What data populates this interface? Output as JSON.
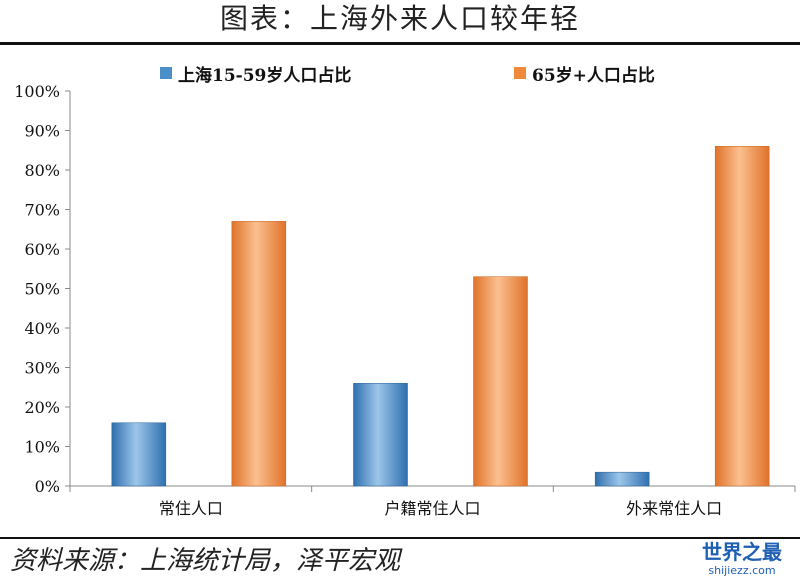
{
  "header": {
    "title": "图表：上海外来人口较年轻"
  },
  "footer": {
    "source": "资料来源：上海统计局，泽平宏观"
  },
  "watermark": {
    "main": "世界之最",
    "sub": "shijiezz.com"
  },
  "colors": {
    "blue": "#4a8fc9",
    "orange": "#f08a3a",
    "axis": "#888888"
  },
  "chart_data": {
    "type": "bar",
    "categories": [
      "常住人口",
      "户籍常住人口",
      "外来常住人口"
    ],
    "series": [
      {
        "name": "上海15-59岁人口占比",
        "values": [
          16,
          26,
          3.5
        ]
      },
      {
        "name": "65岁+人口占比",
        "values": [
          67,
          53,
          86
        ]
      }
    ],
    "ylim": [
      0,
      100
    ],
    "yticks": [
      "0%",
      "10%",
      "20%",
      "30%",
      "40%",
      "50%",
      "60%",
      "70%",
      "80%",
      "90%",
      "100%"
    ],
    "legend": "top",
    "grid": false
  }
}
